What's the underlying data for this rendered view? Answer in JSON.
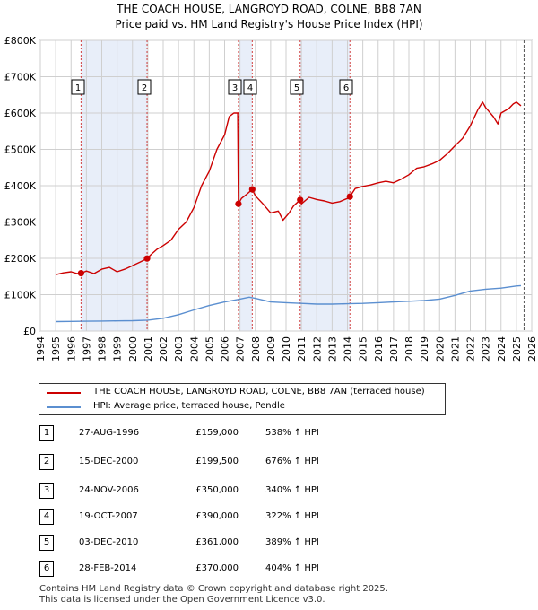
{
  "title_line1": "THE COACH HOUSE, LANGROYD ROAD, COLNE, BB8 7AN",
  "title_line2": "Price paid vs. HM Land Registry's House Price Index (HPI)",
  "colors": {
    "property": "#cc0000",
    "hpi": "#5b8fd0",
    "shade": "#e8eef9",
    "grid": "#cfcfcf"
  },
  "chart_data": {
    "type": "line",
    "title": "Price paid vs. HM Land Registry's House Price Index (HPI)",
    "xlim": [
      1994,
      2026
    ],
    "ylim": [
      0,
      800000
    ],
    "x_ticks": [
      "1994",
      "1995",
      "1996",
      "1997",
      "1998",
      "1999",
      "2000",
      "2001",
      "2002",
      "2003",
      "2004",
      "2005",
      "2006",
      "2007",
      "2008",
      "2009",
      "2010",
      "2011",
      "2012",
      "2013",
      "2014",
      "2015",
      "2016",
      "2017",
      "2018",
      "2019",
      "2020",
      "2021",
      "2022",
      "2023",
      "2024",
      "2025",
      "2026"
    ],
    "y_ticks": [
      {
        "value": 0,
        "label": "£0"
      },
      {
        "value": 100000,
        "label": "£100K"
      },
      {
        "value": 200000,
        "label": "£200K"
      },
      {
        "value": 300000,
        "label": "£300K"
      },
      {
        "value": 400000,
        "label": "£400K"
      },
      {
        "value": 500000,
        "label": "£500K"
      },
      {
        "value": 600000,
        "label": "£600K"
      },
      {
        "value": 700000,
        "label": "£700K"
      },
      {
        "value": 800000,
        "label": "£800K"
      }
    ],
    "shaded_ranges": [
      [
        1996.65,
        2000.95
      ],
      [
        2006.9,
        2007.8
      ],
      [
        2010.92,
        2014.16
      ]
    ],
    "end_marker_x": 2025.5,
    "series": [
      {
        "name": "THE COACH HOUSE, LANGROYD ROAD, COLNE, BB8 7AN (terraced house)",
        "x": [
          1995.0,
          1995.5,
          1996.0,
          1996.4,
          1996.65,
          1997.0,
          1997.5,
          1998.0,
          1998.5,
          1999.0,
          1999.5,
          2000.0,
          2000.5,
          2000.95,
          2001.2,
          2001.6,
          2002.0,
          2002.5,
          2003.0,
          2003.5,
          2004.0,
          2004.5,
          2005.0,
          2005.5,
          2006.0,
          2006.3,
          2006.6,
          2006.85,
          2006.9,
          2007.1,
          2007.4,
          2007.8,
          2008.0,
          2008.5,
          2009.0,
          2009.5,
          2009.8,
          2010.2,
          2010.5,
          2010.92,
          2011.0,
          2011.5,
          2012.0,
          2012.5,
          2013.0,
          2013.5,
          2014.0,
          2014.16,
          2014.5,
          2015.0,
          2015.5,
          2016.0,
          2016.5,
          2017.0,
          2017.5,
          2018.0,
          2018.5,
          2019.0,
          2019.5,
          2020.0,
          2020.5,
          2021.0,
          2021.5,
          2022.0,
          2022.5,
          2022.8,
          2023.0,
          2023.5,
          2023.8,
          2024.0,
          2024.5,
          2024.8,
          2025.0,
          2025.3
        ],
        "values": [
          155000,
          160000,
          163000,
          158000,
          159000,
          165000,
          158000,
          170000,
          175000,
          163000,
          170000,
          180000,
          190000,
          199500,
          210000,
          225000,
          235000,
          250000,
          280000,
          300000,
          340000,
          400000,
          440000,
          500000,
          540000,
          590000,
          600000,
          600000,
          350000,
          365000,
          375000,
          390000,
          372000,
          350000,
          325000,
          330000,
          305000,
          325000,
          345000,
          361000,
          350000,
          368000,
          362000,
          358000,
          352000,
          356000,
          365000,
          370000,
          392000,
          398000,
          402000,
          408000,
          412000,
          408000,
          418000,
          430000,
          448000,
          452000,
          460000,
          470000,
          488000,
          510000,
          530000,
          565000,
          610000,
          630000,
          615000,
          590000,
          570000,
          600000,
          612000,
          625000,
          630000,
          620000
        ]
      },
      {
        "name": "HPI: Average price, terraced house, Pendle",
        "x": [
          1995,
          1996,
          1997,
          1998,
          1999,
          2000,
          2001,
          2002,
          2003,
          2004,
          2005,
          2006,
          2007,
          2007.6,
          2008,
          2009,
          2010,
          2011,
          2012,
          2013,
          2014,
          2015,
          2016,
          2017,
          2018,
          2019,
          2020,
          2021,
          2022,
          2023,
          2024,
          2025,
          2025.3
        ],
        "values": [
          26000,
          26500,
          27000,
          27500,
          28000,
          28500,
          30000,
          35000,
          45000,
          58000,
          70000,
          80000,
          88000,
          93000,
          90000,
          80000,
          78000,
          76000,
          74000,
          74000,
          75000,
          76000,
          78000,
          80000,
          82000,
          84000,
          88000,
          98000,
          110000,
          115000,
          118000,
          124000,
          125000
        ]
      }
    ],
    "sales": [
      {
        "num": "1",
        "x": 1996.65,
        "price": 159000,
        "date": "27-AUG-1996",
        "price_label": "£159,000",
        "hpi": "538% ↑ HPI"
      },
      {
        "num": "2",
        "x": 2000.95,
        "price": 199500,
        "date": "15-DEC-2000",
        "price_label": "£199,500",
        "hpi": "676% ↑ HPI"
      },
      {
        "num": "3",
        "x": 2006.9,
        "price": 350000,
        "date": "24-NOV-2006",
        "price_label": "£350,000",
        "hpi": "340% ↑ HPI"
      },
      {
        "num": "4",
        "x": 2007.8,
        "price": 390000,
        "date": "19-OCT-2007",
        "price_label": "£390,000",
        "hpi": "322% ↑ HPI"
      },
      {
        "num": "5",
        "x": 2010.92,
        "price": 361000,
        "date": "03-DEC-2010",
        "price_label": "£361,000",
        "hpi": "389% ↑ HPI"
      },
      {
        "num": "6",
        "x": 2014.16,
        "price": 370000,
        "date": "28-FEB-2014",
        "price_label": "£370,000",
        "hpi": "404% ↑ HPI"
      }
    ]
  },
  "legend": {
    "property_label": "THE COACH HOUSE, LANGROYD ROAD, COLNE, BB8 7AN (terraced house)",
    "hpi_label": "HPI: Average price, terraced house, Pendle"
  },
  "footer_line1": "Contains HM Land Registry data © Crown copyright and database right 2025.",
  "footer_line2": "This data is licensed under the Open Government Licence v3.0."
}
